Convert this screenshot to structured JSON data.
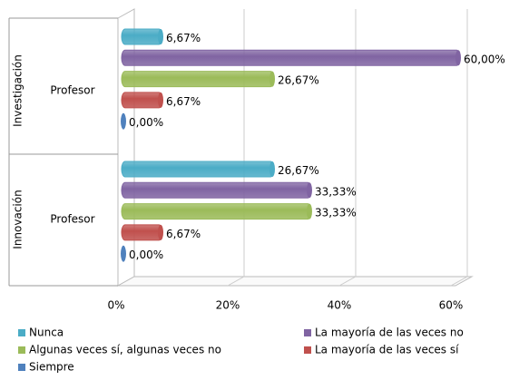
{
  "chart_data": {
    "type": "bar",
    "orientation": "horizontal",
    "groups": [
      "Investigación",
      "Innovación"
    ],
    "categories": [
      "Profesor",
      "Profesor"
    ],
    "series": [
      {
        "name": "Nunca",
        "color": "#4bacc6",
        "values": [
          6.67,
          26.67
        ],
        "value_labels": [
          "6,67%",
          "26,67%"
        ]
      },
      {
        "name": "La mayoría de las veces no",
        "color": "#8064a2",
        "values": [
          60.0,
          33.33
        ],
        "value_labels": [
          "60,00%",
          "33,33%"
        ]
      },
      {
        "name": "Algunas veces sí, algunas veces no",
        "color": "#9bbb59",
        "values": [
          26.67,
          33.33
        ],
        "value_labels": [
          "26,67%",
          "33,33%"
        ]
      },
      {
        "name": "La mayoría de las veces sí",
        "color": "#c0504d",
        "values": [
          6.67,
          6.67
        ],
        "value_labels": [
          "6,67%",
          "6,67%"
        ]
      },
      {
        "name": "Siempre",
        "color": "#4f81bd",
        "values": [
          0.0,
          0.0
        ],
        "value_labels": [
          "0,00%",
          "0,00%"
        ]
      }
    ],
    "xlim": [
      0,
      60
    ],
    "xticks": [
      {
        "value": 0,
        "label": "0%"
      },
      {
        "value": 20,
        "label": "20%"
      },
      {
        "value": 40,
        "label": "40%"
      },
      {
        "value": 60,
        "label": "60%"
      }
    ],
    "grid": true,
    "legend": "bottom"
  }
}
